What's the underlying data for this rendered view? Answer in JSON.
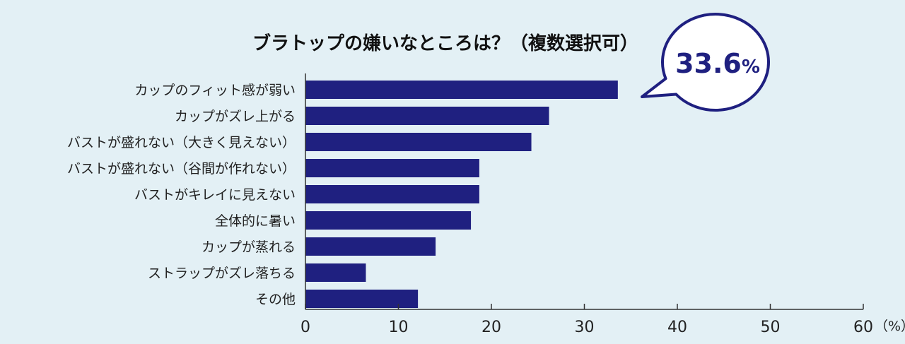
{
  "colors": {
    "bar": "#1f2080",
    "axis": "#333333",
    "background": "#e3f0f5",
    "callout_border": "#1f2080",
    "callout_fill": "#ffffff"
  },
  "callout": {
    "value": "33.6",
    "unit": "%"
  },
  "chart_data": {
    "type": "bar",
    "orientation": "horizontal",
    "title": "ブラトップの嫌いなところは？（複数選択可）",
    "categories": [
      "カップのフィット感が弱い",
      "カップがズレ上がる",
      "バストが盛れない（大きく見えない）",
      "バストが盛れない（谷間が作れない）",
      "バストがキレイに見えない",
      "全体的に暑い",
      "カップが蒸れる",
      "ストラップがズレ落ちる",
      "その他"
    ],
    "values": [
      33.6,
      26.2,
      24.3,
      18.7,
      18.7,
      17.8,
      14.0,
      6.5,
      12.1
    ],
    "xlim": [
      0,
      60
    ],
    "xticks": [
      "0",
      "10",
      "20",
      "30",
      "40",
      "50",
      "60"
    ],
    "xunit": "（%）",
    "grid": false,
    "legend": "none"
  }
}
